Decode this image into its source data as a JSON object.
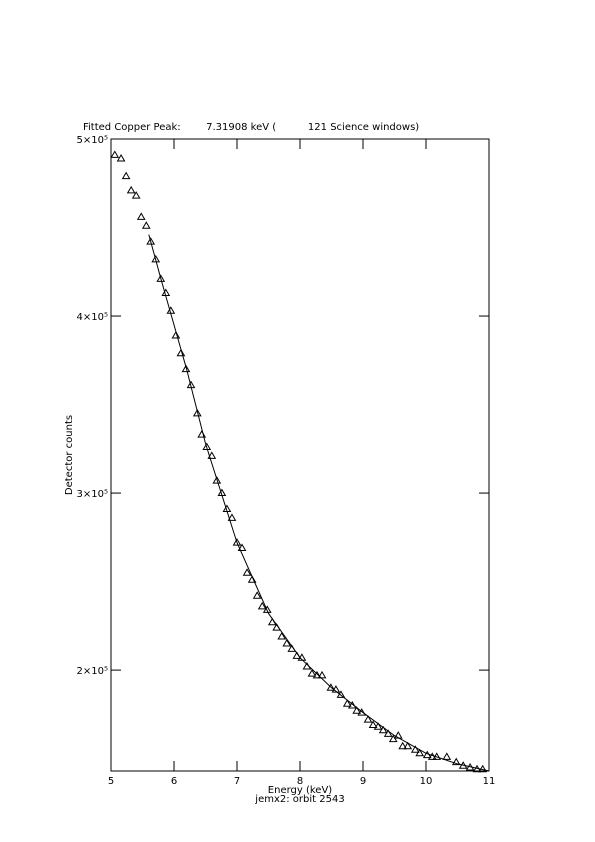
{
  "chart_data": {
    "type": "scatter",
    "title": "Fitted Copper Peak:        7.31908 keV (          121 Science windows)",
    "x_label": "Energy (keV)",
    "subtitle": "jemx2: orbit 2543",
    "y_label": "Detector counts",
    "color": "#000000",
    "marker": "triangle",
    "x": [
      5.06,
      5.16,
      5.24,
      5.32,
      5.4,
      5.48,
      5.56,
      5.63,
      5.71,
      5.79,
      5.87,
      5.95,
      6.03,
      6.11,
      6.19,
      6.27,
      6.37,
      6.44,
      6.52,
      6.6,
      6.68,
      6.76,
      6.84,
      6.92,
      7.0,
      7.08,
      7.16,
      7.24,
      7.32,
      7.4,
      7.48,
      7.56,
      7.63,
      7.71,
      7.79,
      7.87,
      7.95,
      8.03,
      8.11,
      8.19,
      8.27,
      8.35,
      8.49,
      8.57,
      8.65,
      8.75,
      8.83,
      8.9,
      8.98,
      9.08,
      9.16,
      9.24,
      9.32,
      9.4,
      9.48,
      9.56,
      9.63,
      9.71,
      9.83,
      9.9,
      10.02,
      10.1,
      10.17,
      10.33,
      10.48,
      10.59,
      10.7,
      10.81,
      10.9
    ],
    "values": [
      491000,
      489000,
      479000,
      471000,
      468000,
      456000,
      451000,
      442000,
      432000,
      421000,
      413000,
      403000,
      389000,
      379000,
      370000,
      361000,
      345000,
      333000,
      326000,
      321000,
      307000,
      300000,
      291000,
      286000,
      272000,
      269000,
      255000,
      251000,
      242000,
      236000,
      234000,
      227000,
      224000,
      219000,
      215000,
      212000,
      208000,
      207000,
      202000,
      198000,
      197000,
      197000,
      190000,
      189000,
      186000,
      181000,
      180000,
      177000,
      176000,
      172000,
      169000,
      168000,
      166000,
      164000,
      161000,
      163000,
      157000,
      157000,
      155000,
      153000,
      152000,
      151000,
      151000,
      151000,
      148000,
      146000,
      145000,
      144000,
      144000
    ],
    "fit": {
      "x": [
        5.6,
        5.8,
        6.0,
        6.2,
        6.5,
        7.0,
        7.5,
        8.0,
        8.5,
        9.0,
        9.5,
        10.0,
        10.5,
        11.0
      ],
      "values": [
        446000,
        420000,
        395000,
        370000,
        328000,
        272000,
        232000,
        207000,
        190000,
        176000,
        163000,
        153000,
        147000,
        143000
      ]
    },
    "xlim": [
      5,
      11
    ],
    "xticks": [
      5,
      6,
      7,
      8,
      9,
      10,
      11
    ],
    "ylim": [
      143000,
      500000
    ],
    "yticks": [
      {
        "value": 200000,
        "label": "2×10⁵"
      },
      {
        "value": 300000,
        "label": "3×10⁵"
      },
      {
        "value": 400000,
        "label": "4×10⁵"
      },
      {
        "value": 500000,
        "label": "5×10⁵"
      }
    ]
  }
}
